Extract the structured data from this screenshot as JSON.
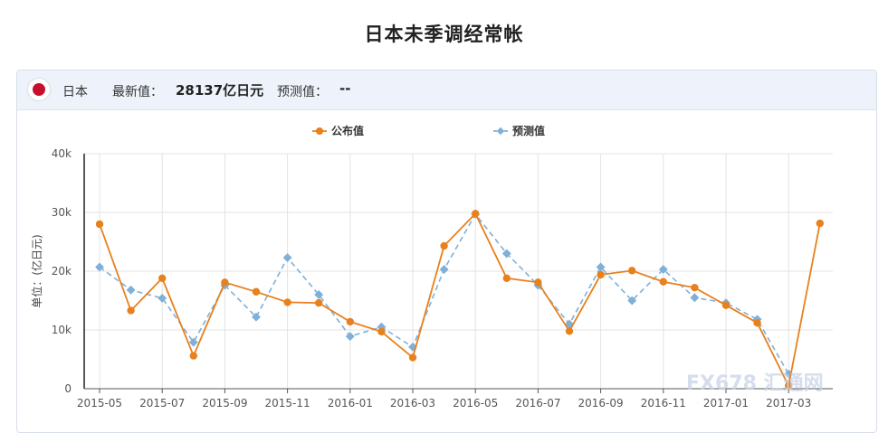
{
  "page": {
    "title": "日本未季调经常帐"
  },
  "info": {
    "country": "日本",
    "latest_label": "最新值：",
    "latest_value": "28137亿日元",
    "forecast_label": "预测值：",
    "forecast_value": "--",
    "flag_color": "#c8102e"
  },
  "watermark": "FX678 汇通网",
  "chart_data": {
    "type": "line",
    "ylabel": "单位：(亿日元)",
    "ylim": [
      0,
      40000
    ],
    "y_ticks": [
      "0",
      "10k",
      "20k",
      "30k",
      "40k"
    ],
    "x_tick_labels": [
      "2015-05",
      "2015-07",
      "2015-09",
      "2015-11",
      "2016-01",
      "2016-03",
      "2016-05",
      "2016-07",
      "2016-09",
      "2016-11",
      "2017-01",
      "2017-03"
    ],
    "categories": [
      "2015-05",
      "2015-06",
      "2015-07",
      "2015-08",
      "2015-09",
      "2015-10",
      "2015-11",
      "2015-12",
      "2016-01",
      "2016-02",
      "2016-03",
      "2016-04",
      "2016-05",
      "2016-06",
      "2016-07",
      "2016-08",
      "2016-09",
      "2016-10",
      "2016-11",
      "2016-12",
      "2017-01",
      "2017-02",
      "2017-03",
      "2017-04"
    ],
    "series": [
      {
        "name": "公布值",
        "color": "#e8801e",
        "style": "solid",
        "values": [
          28000,
          13300,
          18800,
          5600,
          18100,
          16500,
          14700,
          14600,
          11400,
          9700,
          5300,
          24300,
          29800,
          18800,
          18100,
          9800,
          19400,
          20100,
          18200,
          17200,
          14200,
          11200,
          500,
          28137
        ]
      },
      {
        "name": "预测值",
        "color": "#7fb0d8",
        "style": "dashed",
        "values": [
          20700,
          16800,
          15400,
          7900,
          17600,
          12200,
          22300,
          16000,
          8900,
          10500,
          7100,
          20300,
          29700,
          23000,
          17600,
          11000,
          20700,
          15000,
          20300,
          15500,
          14600,
          11800,
          2500,
          null
        ]
      }
    ],
    "legend_position": "top-center",
    "grid": true
  }
}
